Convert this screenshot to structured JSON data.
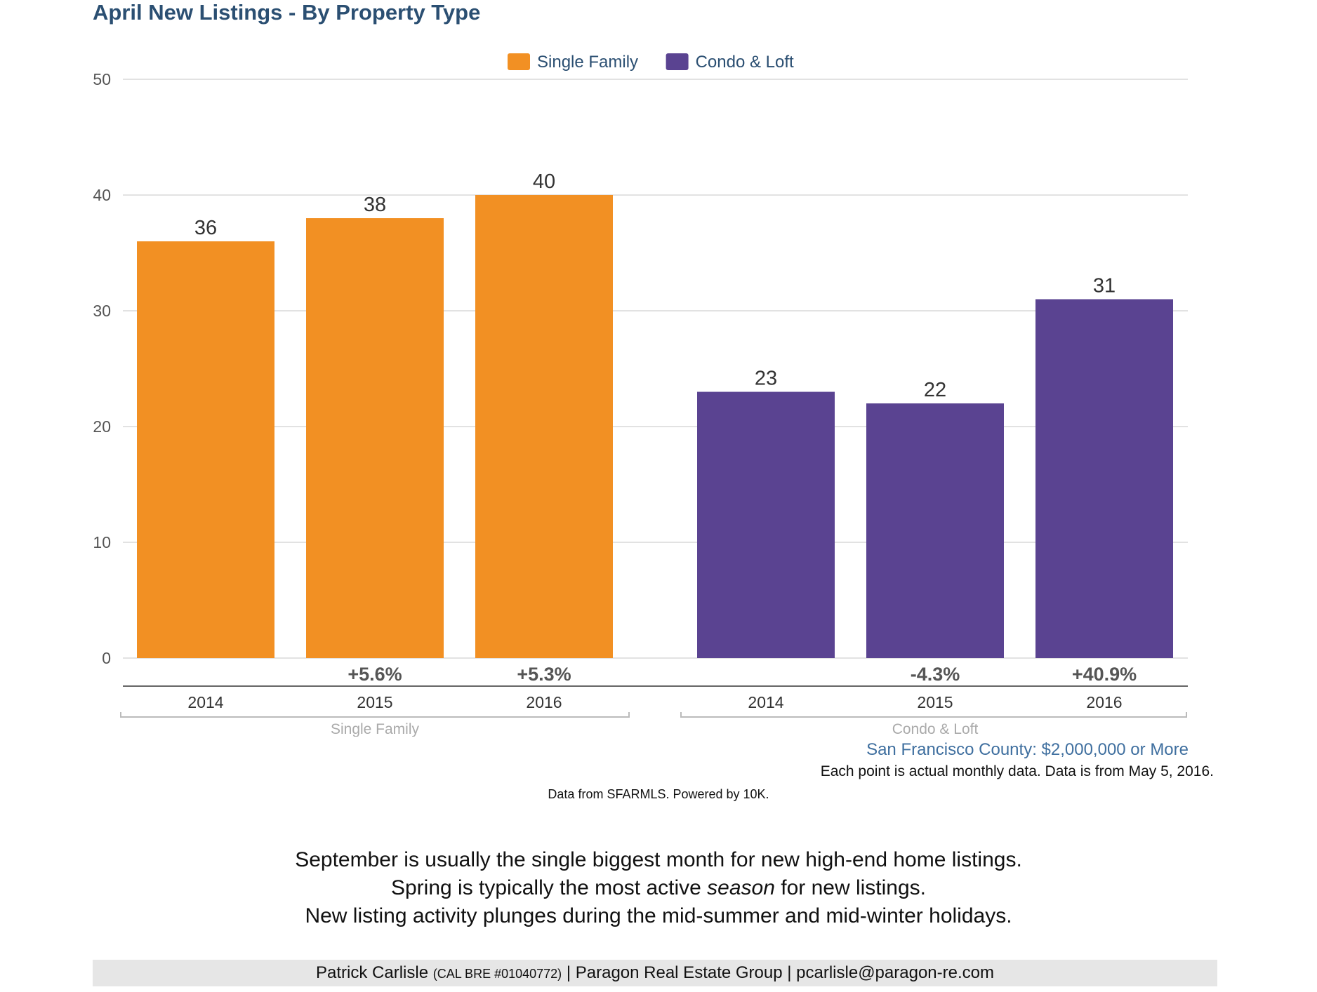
{
  "title": "April New Listings - By Property Type",
  "colors": {
    "single_family": "#f29023",
    "condo_loft": "#5a4391",
    "title": "#2b4f72",
    "subtitle": "#3f6f9f",
    "grid": "#d9d9d9",
    "axis_text": "#555555",
    "label_text": "#333333",
    "change_text": "#555555",
    "group_label": "#aaaaaa"
  },
  "chart_data": {
    "type": "bar",
    "title": "April New Listings - By Property Type",
    "xlabel": "",
    "ylabel": "",
    "ylim": [
      0,
      50
    ],
    "yticks": [
      "0",
      "10",
      "20",
      "30",
      "40",
      "50"
    ],
    "grid": true,
    "legend_position": "top-center",
    "legend": [
      {
        "label": "Single Family",
        "color": "#f29023"
      },
      {
        "label": "Condo & Loft",
        "color": "#5a4391"
      }
    ],
    "groups": [
      {
        "name": "Single Family",
        "color": "#f29023",
        "categories": [
          "2014",
          "2015",
          "2016"
        ],
        "values": [
          36,
          38,
          40
        ],
        "value_labels": [
          "36",
          "38",
          "40"
        ],
        "changes": [
          "",
          "+5.6%",
          "+5.3%"
        ]
      },
      {
        "name": "Condo & Loft",
        "color": "#5a4391",
        "categories": [
          "2014",
          "2015",
          "2016"
        ],
        "values": [
          23,
          22,
          31
        ],
        "value_labels": [
          "23",
          "22",
          "31"
        ],
        "changes": [
          "",
          "-4.3%",
          "+40.9%"
        ]
      }
    ]
  },
  "subtitle": "San Francisco County: $2,000,000 or More",
  "note": "Each point is actual monthly data. Data is from May 5, 2016.",
  "credit": "Data from SFARMLS. Powered by 10K.",
  "commentary": {
    "line1": "September is usually the single biggest month for new high-end home listings.",
    "line2_before": "Spring is typically the most active ",
    "line2_em": "season",
    "line2_after": " for new listings.",
    "line3": "New listing activity plunges during the mid-summer and mid-winter holidays."
  },
  "footer": {
    "name": "Patrick Carlisle",
    "license": "(CAL BRE #01040772)",
    "rest": "| Paragon Real Estate Group | pcarlisle@paragon-re.com"
  }
}
